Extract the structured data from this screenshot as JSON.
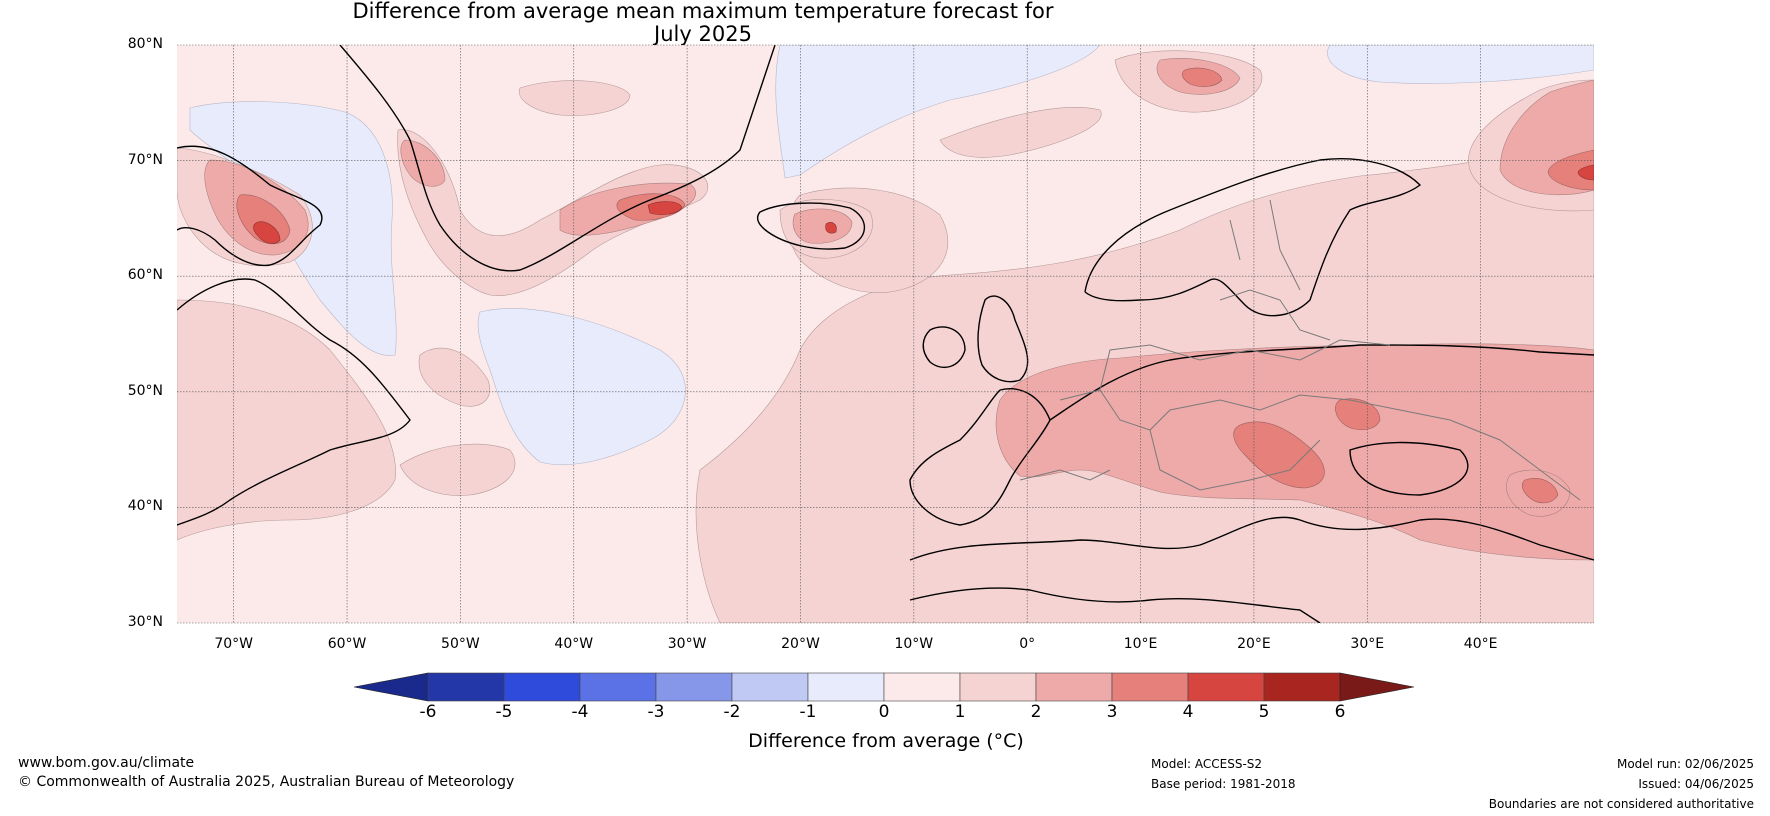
{
  "title": {
    "line1": "Difference from average mean maximum temperature forecast for",
    "line2": "July 2025"
  },
  "map": {
    "extent": {
      "lon_min": -75,
      "lon_max": 50,
      "lat_min": 30,
      "lat_max": 80
    },
    "lat_ticks": [
      {
        "value": 80,
        "label": "80°N"
      },
      {
        "value": 70,
        "label": "70°N"
      },
      {
        "value": 60,
        "label": "60°N"
      },
      {
        "value": 50,
        "label": "50°N"
      },
      {
        "value": 40,
        "label": "40°N"
      },
      {
        "value": 30,
        "label": "30°N"
      }
    ],
    "lon_ticks": [
      {
        "value": -70,
        "label": "70°W"
      },
      {
        "value": -60,
        "label": "60°W"
      },
      {
        "value": -50,
        "label": "50°W"
      },
      {
        "value": -40,
        "label": "40°W"
      },
      {
        "value": -30,
        "label": "30°W"
      },
      {
        "value": -20,
        "label": "20°W"
      },
      {
        "value": -10,
        "label": "10°W"
      },
      {
        "value": 0,
        "label": "0°"
      },
      {
        "value": 10,
        "label": "10°E"
      },
      {
        "value": 20,
        "label": "20°E"
      },
      {
        "value": 30,
        "label": "30°E"
      },
      {
        "value": 40,
        "label": "40°E"
      }
    ],
    "background_anomaly_range": [
      0,
      1
    ]
  },
  "colorbar": {
    "bins": [
      {
        "range": [
          -6,
          -5
        ],
        "color": "#2437a8"
      },
      {
        "range": [
          -5,
          -4
        ],
        "color": "#2f4bdc"
      },
      {
        "range": [
          -4,
          -3
        ],
        "color": "#5b72e6"
      },
      {
        "range": [
          -3,
          -2
        ],
        "color": "#8697ea"
      },
      {
        "range": [
          -2,
          -1
        ],
        "color": "#c0c8f4"
      },
      {
        "range": [
          -1,
          0
        ],
        "color": "#e8ebfb"
      },
      {
        "range": [
          0,
          1
        ],
        "color": "#fceaea"
      },
      {
        "range": [
          1,
          2
        ],
        "color": "#f6d3d3"
      },
      {
        "range": [
          2,
          3
        ],
        "color": "#eeaaa8"
      },
      {
        "range": [
          3,
          4
        ],
        "color": "#e5807a"
      },
      {
        "range": [
          4,
          5
        ],
        "color": "#d64540"
      },
      {
        "range": [
          5,
          6
        ],
        "color": "#a8261f"
      }
    ],
    "under_color": "#1a2a8c",
    "over_color": "#7a1a18",
    "tick_labels": [
      "-6",
      "-5",
      "-4",
      "-3",
      "-2",
      "-1",
      "0",
      "1",
      "2",
      "3",
      "4",
      "5",
      "6"
    ],
    "label": "Difference from average (°C)"
  },
  "footer": {
    "website": "www.bom.gov.au/climate",
    "copyright": "© Commonwealth of Australia 2025, Australian Bureau of Meteorology",
    "model": "Model: ACCESS-S2",
    "base_period": "Base period: 1981-2018",
    "model_run": "Model run: 02/06/2025",
    "issued": "Issued: 04/06/2025",
    "disclaimer": "Boundaries are not considered authoritative"
  }
}
